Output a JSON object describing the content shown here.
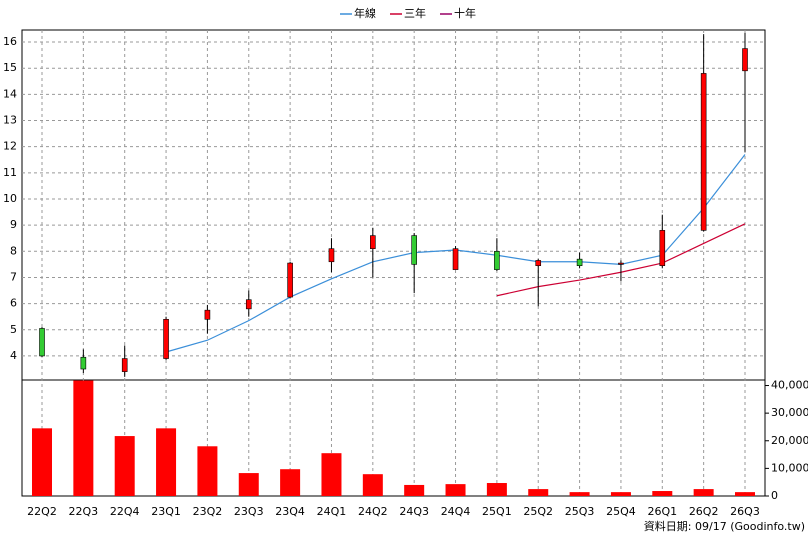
{
  "chart_data": {
    "type": "candlestick",
    "categories": [
      "22Q2",
      "22Q3",
      "22Q4",
      "23Q1",
      "23Q2",
      "23Q3",
      "23Q4",
      "24Q1",
      "24Q2",
      "24Q3",
      "24Q4",
      "25Q1",
      "25Q2",
      "25Q3",
      "25Q4",
      "26Q1",
      "26Q2",
      "26Q3"
    ],
    "open": [
      5.05,
      3.95,
      3.4,
      3.9,
      5.4,
      5.8,
      6.25,
      7.6,
      8.1,
      8.6,
      7.3,
      8.0,
      7.45,
      7.7,
      7.5,
      7.45,
      8.8,
      14.9
    ],
    "high": [
      5.1,
      4.25,
      4.4,
      5.5,
      5.95,
      6.5,
      7.6,
      8.5,
      8.9,
      8.7,
      8.2,
      8.5,
      7.7,
      7.95,
      7.65,
      9.4,
      16.3,
      16.35
    ],
    "low": [
      3.95,
      3.35,
      3.2,
      3.85,
      4.85,
      5.5,
      6.2,
      7.2,
      7.0,
      6.4,
      7.3,
      7.25,
      5.9,
      7.35,
      6.85,
      7.35,
      8.75,
      11.8
    ],
    "close": [
      4.0,
      3.5,
      3.9,
      5.4,
      5.75,
      6.15,
      7.55,
      8.1,
      8.6,
      7.5,
      8.1,
      7.3,
      7.65,
      7.45,
      7.55,
      8.8,
      14.8,
      15.75
    ],
    "up_color": "#ff0000",
    "down_color": "#33cc33",
    "ylim": [
      3.08,
      16.46
    ],
    "yticks": [
      4,
      5,
      6,
      7,
      8,
      9,
      10,
      11,
      12,
      13,
      14,
      15,
      16
    ],
    "grid": true,
    "lines": [
      {
        "name": "年線",
        "color": "#3b8fd9",
        "values": [
          null,
          null,
          null,
          4.15,
          4.6,
          5.35,
          6.25,
          6.95,
          7.6,
          7.95,
          8.05,
          7.85,
          7.6,
          7.6,
          7.5,
          7.85,
          9.65,
          11.7
        ]
      },
      {
        "name": "三年",
        "color": "#cc0033",
        "values": [
          null,
          null,
          null,
          null,
          null,
          null,
          null,
          null,
          null,
          null,
          null,
          6.3,
          6.65,
          6.9,
          7.2,
          7.55,
          8.3,
          9.05
        ]
      },
      {
        "name": "十年",
        "color": "#990066",
        "values": [
          null,
          null,
          null,
          null,
          null,
          null,
          null,
          null,
          null,
          null,
          null,
          null,
          null,
          null,
          null,
          null,
          null,
          null
        ]
      }
    ],
    "volume": {
      "color": "#ff0000",
      "values": [
        24500,
        41800,
        21700,
        24500,
        18000,
        8300,
        9700,
        15500,
        7900,
        4000,
        4300,
        4700,
        2500,
        1400,
        1400,
        1800,
        2500,
        1400
      ],
      "ylim": [
        0,
        42000
      ],
      "yticks": [
        0,
        {
          "value": 10000,
          "label": "10,000"
        },
        {
          "value": 20000,
          "label": "20,000"
        },
        {
          "value": 30000,
          "label": "30,000"
        },
        {
          "value": 40000,
          "label": "40,000"
        }
      ]
    },
    "footer": "資料日期: 09/17 (Goodinfo.tw)"
  }
}
